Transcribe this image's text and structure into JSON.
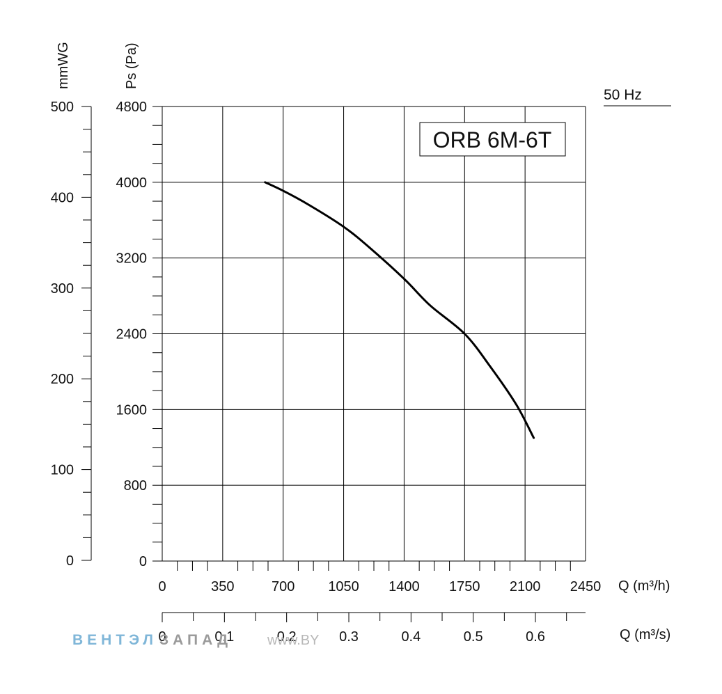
{
  "chart_data": {
    "type": "line",
    "title": "ORB 6M-6T",
    "frequency_label": "50 Hz",
    "xlabel": "Q (m³/h)",
    "xlabel_secondary": "Q (m³/s)",
    "ylabel": "Ps (Pa)",
    "ylabel_secondary": "mmWG",
    "xlim": [
      0,
      2450
    ],
    "ylim": [
      0,
      4800
    ],
    "x_secondary_lim": [
      0,
      0.680556
    ],
    "y_secondary_lim": [
      0,
      500
    ],
    "x_ticks": [
      "0",
      "350",
      "700",
      "1050",
      "1400",
      "1750",
      "2100",
      "2450"
    ],
    "y_ticks": [
      "0",
      "800",
      "1600",
      "2400",
      "3200",
      "4000",
      "4800"
    ],
    "x_secondary_ticks": [
      "0",
      "0.1",
      "0.2",
      "0.3",
      "0.4",
      "0.5",
      "0.6"
    ],
    "y_secondary_ticks": [
      "0",
      "100",
      "200",
      "300",
      "400",
      "500"
    ],
    "grid": true,
    "series": [
      {
        "x": [
          595,
          700,
          850,
          1050,
          1200,
          1400,
          1550,
          1750,
          1900,
          2050,
          2150
        ],
        "y": [
          4000,
          3910,
          3760,
          3530,
          3310,
          2980,
          2700,
          2400,
          2050,
          1650,
          1300
        ]
      }
    ]
  },
  "watermark": {
    "part1": "ВЕНТЭЛ",
    "part2": "ЗАПАД",
    "url": "www.BY"
  }
}
